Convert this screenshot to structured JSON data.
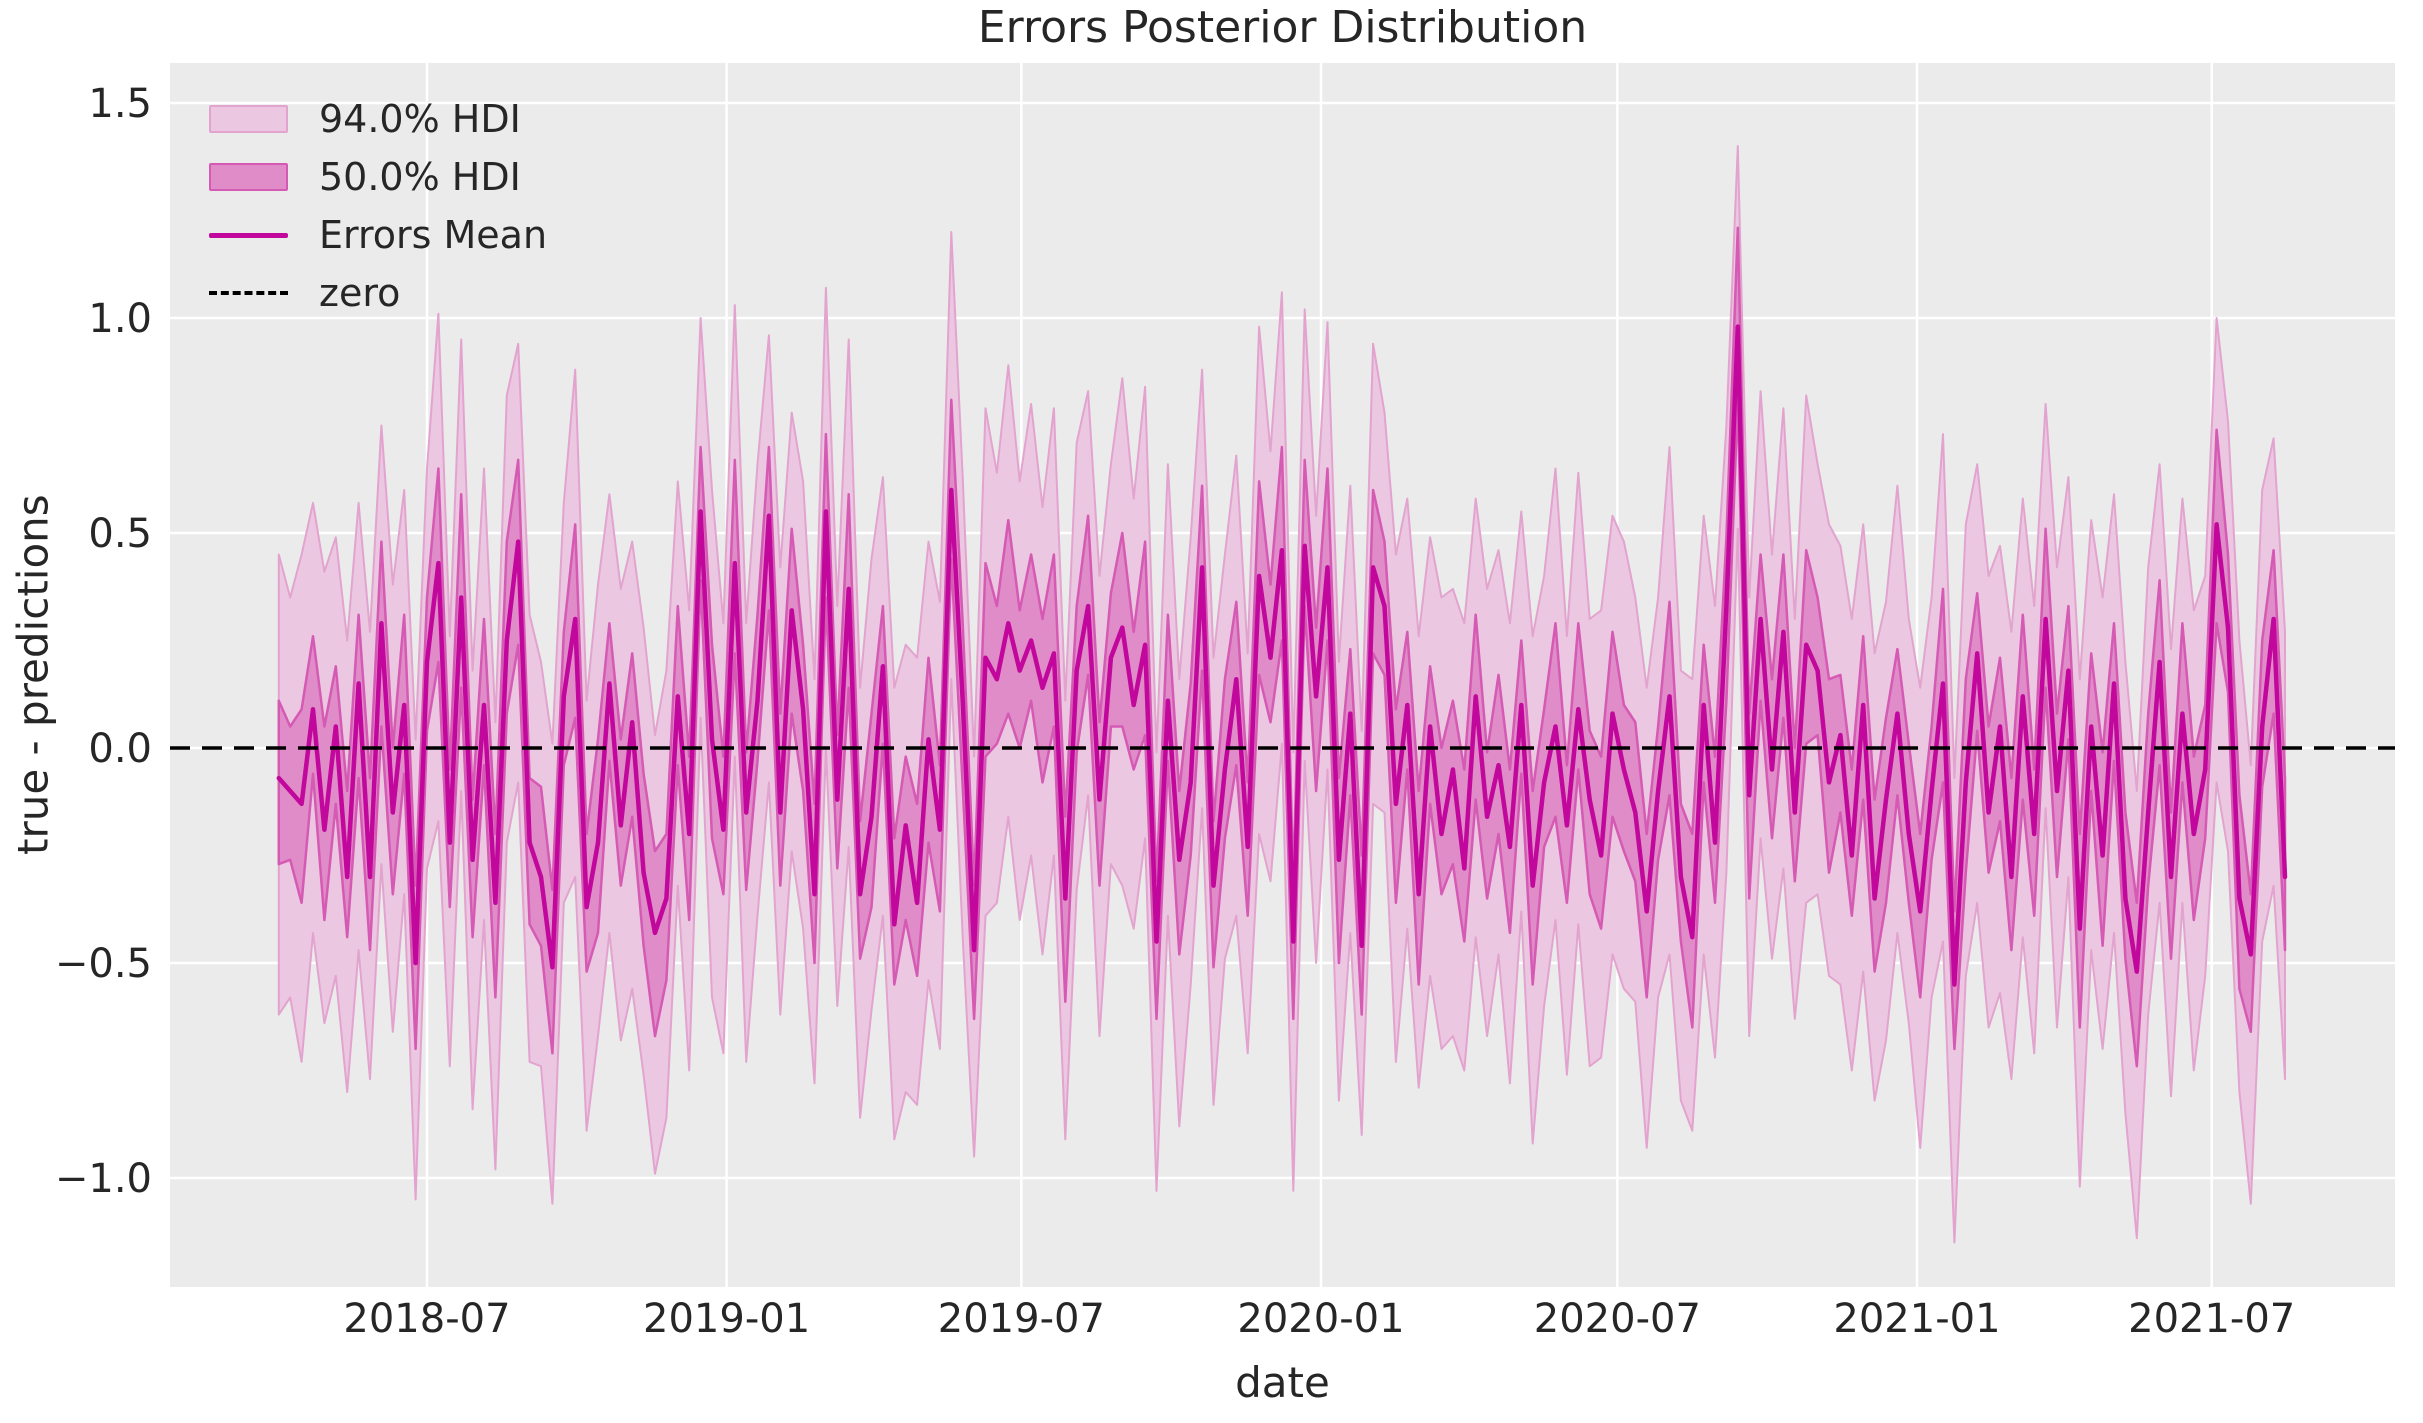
{
  "figure": {
    "title": "Errors Posterior Distribution",
    "xlabel": "date",
    "ylabel": "true - predictions"
  },
  "legend": {
    "items": [
      {
        "label": "94.0% HDI",
        "swatch": "band-light"
      },
      {
        "label": "50.0% HDI",
        "swatch": "band-dark"
      },
      {
        "label": "Errors Mean",
        "swatch": "line"
      },
      {
        "label": "zero",
        "swatch": "dashed-line"
      }
    ]
  },
  "colors": {
    "figure_bg": "#ffffff",
    "plot_bg": "#ebebeb",
    "grid": "#ffffff",
    "text": "#262626",
    "band94_fill": "#ecc7e1",
    "band94_edge": "#e2a4cf",
    "band50_fill": "#e08cc8",
    "band50_edge": "#d55ab4",
    "mean_line": "#c1079c",
    "zero_line": "#000000"
  },
  "chart_data": {
    "type": "line-with-hdi-bands",
    "title": "Errors Posterior Distribution",
    "xlabel": "date",
    "ylabel": "true - predictions",
    "legend_position": "upper-left",
    "grid": true,
    "x_start": "2018-04-01",
    "x_step_days": 7,
    "n_points": 177,
    "ylim": [
      -1.2535,
      1.593
    ],
    "y_ticks": [
      {
        "label": "1.5",
        "value": 1.5
      },
      {
        "label": "1.0",
        "value": 1.0
      },
      {
        "label": "0.5",
        "value": 0.5
      },
      {
        "label": "0.0",
        "value": 0.0
      },
      {
        "label": "−0.5",
        "value": -0.5
      },
      {
        "label": "−1.0",
        "value": -1.0
      }
    ],
    "x_ticks": [
      {
        "label": "2018-07",
        "days": 91
      },
      {
        "label": "2019-01",
        "days": 275
      },
      {
        "label": "2019-07",
        "days": 456
      },
      {
        "label": "2020-01",
        "days": 640
      },
      {
        "label": "2020-07",
        "days": 822
      },
      {
        "label": "2021-01",
        "days": 1006
      },
      {
        "label": "2021-07",
        "days": 1187
      }
    ],
    "zero_line_value": 0.0,
    "series": {
      "mean": [
        -0.07,
        -0.1,
        -0.13,
        0.09,
        -0.19,
        0.05,
        -0.3,
        0.15,
        -0.3,
        0.29,
        -0.15,
        0.1,
        -0.5,
        0.2,
        0.43,
        -0.22,
        0.35,
        -0.26,
        0.1,
        -0.36,
        0.25,
        0.48,
        -0.22,
        -0.3,
        -0.51,
        0.12,
        0.3,
        -0.37,
        -0.22,
        0.15,
        -0.18,
        0.06,
        -0.29,
        -0.43,
        -0.35,
        0.12,
        -0.2,
        0.55,
        0.02,
        -0.19,
        0.43,
        -0.15,
        0.11,
        0.54,
        -0.15,
        0.32,
        0.09,
        -0.34,
        0.55,
        -0.12,
        0.37,
        -0.34,
        -0.16,
        0.19,
        -0.41,
        -0.18,
        -0.36,
        0.02,
        -0.19,
        0.6,
        0.11,
        -0.47,
        0.21,
        0.16,
        0.29,
        0.18,
        0.25,
        0.14,
        0.22,
        -0.35,
        0.18,
        0.33,
        -0.12,
        0.21,
        0.28,
        0.1,
        0.24,
        -0.45,
        0.11,
        -0.26,
        -0.08,
        0.42,
        -0.32,
        -0.05,
        0.16,
        -0.23,
        0.4,
        0.21,
        0.46,
        -0.45,
        0.47,
        0.12,
        0.42,
        -0.26,
        0.08,
        -0.46,
        0.42,
        0.33,
        -0.13,
        0.1,
        -0.34,
        0.05,
        -0.2,
        -0.05,
        -0.28,
        0.12,
        -0.16,
        -0.04,
        -0.23,
        0.1,
        -0.32,
        -0.08,
        0.05,
        -0.18,
        0.09,
        -0.12,
        -0.25,
        0.08,
        -0.05,
        -0.15,
        -0.38,
        -0.1,
        0.12,
        -0.3,
        -0.44,
        0.1,
        -0.22,
        0.33,
        0.98,
        -0.11,
        0.3,
        -0.05,
        0.27,
        -0.15,
        0.24,
        0.18,
        -0.08,
        0.03,
        -0.25,
        0.1,
        -0.35,
        -0.12,
        0.08,
        -0.2,
        -0.38,
        -0.1,
        0.15,
        -0.55,
        -0.08,
        0.22,
        -0.15,
        0.05,
        -0.3,
        0.12,
        -0.2,
        0.3,
        -0.1,
        0.18,
        -0.42,
        0.05,
        -0.25,
        0.15,
        -0.35,
        -0.52,
        -0.15,
        0.2,
        -0.3,
        0.08,
        -0.2,
        -0.05,
        0.52,
        0.28,
        -0.35,
        -0.48,
        0.05,
        0.3,
        -0.3
      ],
      "hdi94_upper_offset": [
        0.52,
        0.45,
        0.58,
        0.48,
        0.6,
        0.44,
        0.55,
        0.42,
        0.57,
        0.46,
        0.53,
        0.5,
        0.52,
        0.45,
        0.58,
        0.48,
        0.6,
        0.44,
        0.55,
        0.42,
        0.57,
        0.46,
        0.53,
        0.5,
        0.52,
        0.45,
        0.58,
        0.48,
        0.6,
        0.44,
        0.55,
        0.42,
        0.57,
        0.46,
        0.53,
        0.5,
        0.52,
        0.45,
        0.58,
        0.48,
        0.6,
        0.44,
        0.55,
        0.42,
        0.57,
        0.46,
        0.53,
        0.5,
        0.52,
        0.45,
        0.58,
        0.48,
        0.6,
        0.44,
        0.55,
        0.42,
        0.57,
        0.46,
        0.53,
        0.6,
        0.52,
        0.45,
        0.58,
        0.48,
        0.6,
        0.44,
        0.55,
        0.42,
        0.57,
        0.46,
        0.53,
        0.5,
        0.52,
        0.45,
        0.58,
        0.48,
        0.6,
        0.44,
        0.55,
        0.42,
        0.57,
        0.46,
        0.53,
        0.5,
        0.52,
        0.45,
        0.58,
        0.48,
        0.6,
        0.44,
        0.55,
        0.42,
        0.57,
        0.46,
        0.53,
        0.5,
        0.52,
        0.45,
        0.58,
        0.48,
        0.6,
        0.44,
        0.55,
        0.42,
        0.57,
        0.46,
        0.53,
        0.5,
        0.52,
        0.45,
        0.58,
        0.48,
        0.6,
        0.44,
        0.55,
        0.42,
        0.57,
        0.46,
        0.53,
        0.5,
        0.52,
        0.45,
        0.58,
        0.48,
        0.6,
        0.44,
        0.55,
        0.42,
        0.42,
        0.46,
        0.53,
        0.5,
        0.52,
        0.45,
        0.58,
        0.48,
        0.6,
        0.44,
        0.55,
        0.42,
        0.57,
        0.46,
        0.53,
        0.5,
        0.52,
        0.45,
        0.58,
        0.48,
        0.6,
        0.44,
        0.55,
        0.42,
        0.57,
        0.46,
        0.53,
        0.5,
        0.52,
        0.45,
        0.58,
        0.48,
        0.6,
        0.44,
        0.55,
        0.42,
        0.57,
        0.46,
        0.53,
        0.5,
        0.52,
        0.45,
        0.48,
        0.48,
        0.6,
        0.44,
        0.55,
        0.42,
        0.57
      ],
      "hdi94_lower_offset": [
        0.55,
        0.48,
        0.6,
        0.52,
        0.45,
        0.58,
        0.5,
        0.62,
        0.47,
        0.56,
        0.51,
        0.44,
        0.55,
        0.48,
        0.6,
        0.52,
        0.45,
        0.58,
        0.5,
        0.62,
        0.47,
        0.56,
        0.51,
        0.44,
        0.55,
        0.48,
        0.6,
        0.52,
        0.45,
        0.58,
        0.5,
        0.62,
        0.47,
        0.56,
        0.51,
        0.44,
        0.55,
        0.48,
        0.6,
        0.52,
        0.45,
        0.58,
        0.5,
        0.62,
        0.47,
        0.56,
        0.51,
        0.44,
        0.55,
        0.48,
        0.6,
        0.52,
        0.45,
        0.58,
        0.5,
        0.62,
        0.47,
        0.56,
        0.51,
        0.44,
        0.55,
        0.48,
        0.6,
        0.52,
        0.45,
        0.58,
        0.5,
        0.62,
        0.47,
        0.56,
        0.51,
        0.44,
        0.55,
        0.48,
        0.6,
        0.52,
        0.45,
        0.58,
        0.5,
        0.62,
        0.47,
        0.56,
        0.51,
        0.44,
        0.55,
        0.48,
        0.6,
        0.52,
        0.45,
        0.58,
        0.5,
        0.62,
        0.47,
        0.56,
        0.51,
        0.44,
        0.55,
        0.48,
        0.6,
        0.52,
        0.45,
        0.58,
        0.5,
        0.62,
        0.47,
        0.56,
        0.51,
        0.44,
        0.55,
        0.48,
        0.6,
        0.52,
        0.45,
        0.58,
        0.5,
        0.62,
        0.47,
        0.56,
        0.51,
        0.44,
        0.55,
        0.48,
        0.6,
        0.52,
        0.45,
        0.58,
        0.5,
        0.62,
        0.47,
        0.56,
        0.51,
        0.44,
        0.55,
        0.48,
        0.6,
        0.52,
        0.45,
        0.58,
        0.5,
        0.62,
        0.47,
        0.56,
        0.51,
        0.44,
        0.55,
        0.48,
        0.6,
        0.6,
        0.45,
        0.58,
        0.5,
        0.62,
        0.47,
        0.56,
        0.51,
        0.44,
        0.55,
        0.48,
        0.6,
        0.52,
        0.45,
        0.58,
        0.5,
        0.62,
        0.47,
        0.56,
        0.51,
        0.44,
        0.55,
        0.48,
        0.6,
        0.52,
        0.45,
        0.58,
        0.5,
        0.62,
        0.47
      ],
      "hdi50_upper_offset": [
        0.18,
        0.15,
        0.22,
        0.17,
        0.24,
        0.14,
        0.2,
        0.16,
        0.23,
        0.19,
        0.15,
        0.21,
        0.18,
        0.15,
        0.22,
        0.17,
        0.24,
        0.14,
        0.2,
        0.16,
        0.23,
        0.19,
        0.15,
        0.21,
        0.18,
        0.15,
        0.22,
        0.17,
        0.24,
        0.14,
        0.2,
        0.16,
        0.23,
        0.19,
        0.15,
        0.21,
        0.18,
        0.15,
        0.22,
        0.17,
        0.24,
        0.14,
        0.2,
        0.16,
        0.23,
        0.19,
        0.15,
        0.21,
        0.18,
        0.15,
        0.22,
        0.17,
        0.24,
        0.14,
        0.2,
        0.16,
        0.23,
        0.19,
        0.15,
        0.21,
        0.18,
        0.15,
        0.22,
        0.17,
        0.24,
        0.14,
        0.2,
        0.16,
        0.23,
        0.19,
        0.15,
        0.21,
        0.18,
        0.15,
        0.22,
        0.17,
        0.24,
        0.14,
        0.2,
        0.16,
        0.23,
        0.19,
        0.15,
        0.21,
        0.18,
        0.15,
        0.22,
        0.17,
        0.24,
        0.14,
        0.2,
        0.16,
        0.23,
        0.19,
        0.15,
        0.21,
        0.18,
        0.15,
        0.22,
        0.17,
        0.24,
        0.14,
        0.2,
        0.16,
        0.23,
        0.19,
        0.15,
        0.21,
        0.18,
        0.15,
        0.22,
        0.17,
        0.24,
        0.14,
        0.2,
        0.16,
        0.23,
        0.19,
        0.15,
        0.21,
        0.18,
        0.15,
        0.22,
        0.17,
        0.24,
        0.14,
        0.2,
        0.16,
        0.23,
        0.19,
        0.15,
        0.21,
        0.18,
        0.15,
        0.22,
        0.17,
        0.24,
        0.14,
        0.2,
        0.16,
        0.23,
        0.19,
        0.15,
        0.21,
        0.18,
        0.15,
        0.22,
        0.17,
        0.24,
        0.14,
        0.2,
        0.16,
        0.23,
        0.19,
        0.15,
        0.21,
        0.18,
        0.15,
        0.22,
        0.17,
        0.24,
        0.14,
        0.2,
        0.16,
        0.23,
        0.19,
        0.15,
        0.21,
        0.18,
        0.15,
        0.22,
        0.17,
        0.24,
        0.14,
        0.2,
        0.16,
        0.23
      ],
      "hdi50_lower_offset": [
        0.2,
        0.16,
        0.23,
        0.15,
        0.21,
        0.18,
        0.14,
        0.22,
        0.17,
        0.24,
        0.19,
        0.16,
        0.2,
        0.16,
        0.23,
        0.15,
        0.21,
        0.18,
        0.14,
        0.22,
        0.17,
        0.24,
        0.19,
        0.16,
        0.2,
        0.16,
        0.23,
        0.15,
        0.21,
        0.18,
        0.14,
        0.22,
        0.17,
        0.24,
        0.19,
        0.16,
        0.2,
        0.16,
        0.23,
        0.15,
        0.21,
        0.18,
        0.14,
        0.22,
        0.17,
        0.24,
        0.19,
        0.16,
        0.2,
        0.16,
        0.23,
        0.15,
        0.21,
        0.18,
        0.14,
        0.22,
        0.17,
        0.24,
        0.19,
        0.16,
        0.2,
        0.16,
        0.23,
        0.15,
        0.21,
        0.18,
        0.14,
        0.22,
        0.17,
        0.24,
        0.19,
        0.16,
        0.2,
        0.16,
        0.23,
        0.15,
        0.21,
        0.18,
        0.14,
        0.22,
        0.17,
        0.24,
        0.19,
        0.16,
        0.2,
        0.16,
        0.23,
        0.15,
        0.21,
        0.18,
        0.14,
        0.22,
        0.17,
        0.24,
        0.19,
        0.16,
        0.2,
        0.16,
        0.23,
        0.15,
        0.21,
        0.18,
        0.14,
        0.22,
        0.17,
        0.24,
        0.19,
        0.16,
        0.2,
        0.16,
        0.23,
        0.15,
        0.21,
        0.18,
        0.14,
        0.22,
        0.17,
        0.24,
        0.19,
        0.16,
        0.2,
        0.16,
        0.23,
        0.15,
        0.21,
        0.18,
        0.14,
        0.22,
        0.17,
        0.24,
        0.19,
        0.16,
        0.2,
        0.16,
        0.23,
        0.15,
        0.21,
        0.18,
        0.14,
        0.22,
        0.17,
        0.24,
        0.19,
        0.16,
        0.2,
        0.16,
        0.23,
        0.15,
        0.21,
        0.18,
        0.14,
        0.22,
        0.17,
        0.24,
        0.19,
        0.16,
        0.2,
        0.16,
        0.23,
        0.15,
        0.21,
        0.18,
        0.14,
        0.22,
        0.17,
        0.24,
        0.19,
        0.16,
        0.2,
        0.16,
        0.23,
        0.15,
        0.21,
        0.18,
        0.14,
        0.22,
        0.17
      ]
    }
  }
}
